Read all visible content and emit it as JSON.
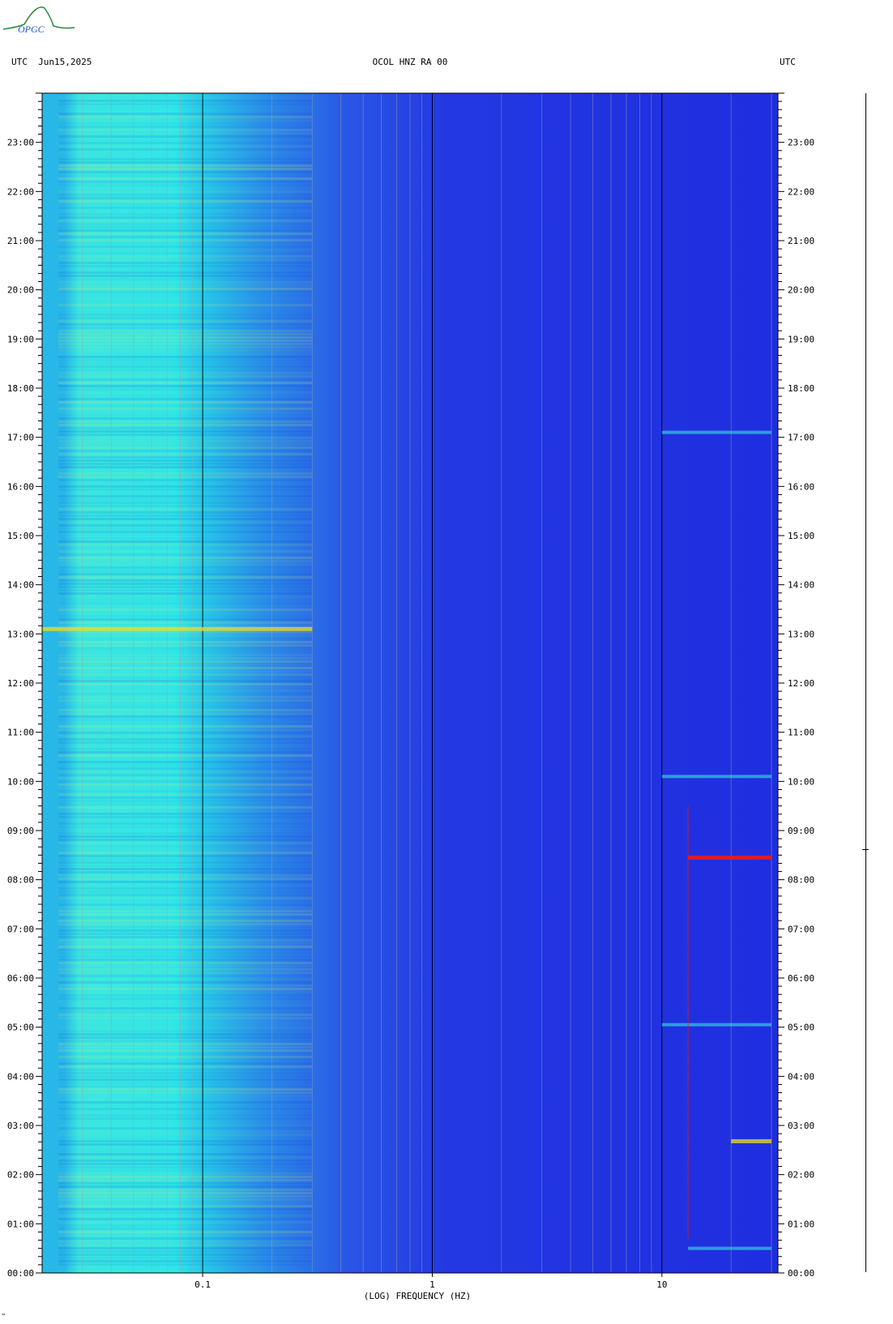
{
  "header": {
    "left": "UTC  Jun15,2025",
    "title": "OCOL HNZ RA 00",
    "right": "UTC",
    "logo_text": "OPGC"
  },
  "footer": {
    "mark": "\""
  },
  "chart_data": {
    "type": "heatmap",
    "title": "OCOL HNZ RA 00",
    "date": "Jun15,2025",
    "xlabel": "(LOG) FREQUENCY (HZ)",
    "ylabel": "UTC",
    "x_scale": "log",
    "xlim": [
      0.02,
      32
    ],
    "x_ticks": [
      0.1,
      1,
      10
    ],
    "x_tick_labels": [
      "0.1",
      "1",
      "10"
    ],
    "ylim_hours": [
      0,
      24
    ],
    "y_tick_labels": [
      "00:00",
      "01:00",
      "02:00",
      "03:00",
      "04:00",
      "05:00",
      "06:00",
      "07:00",
      "08:00",
      "09:00",
      "10:00",
      "11:00",
      "12:00",
      "13:00",
      "14:00",
      "15:00",
      "16:00",
      "17:00",
      "18:00",
      "19:00",
      "20:00",
      "21:00",
      "22:00",
      "23:00"
    ],
    "colors": {
      "background": "#1f2ee0",
      "low_band": "#1fd4e6",
      "mid_band": "#2b7fe8",
      "peak": "#e81a1a",
      "hot": "#f0e020"
    },
    "features": [
      {
        "hour": 8.45,
        "f_start": 13,
        "f_end": 30,
        "level": "max"
      },
      {
        "hour": 2.68,
        "f_start": 20,
        "f_end": 30,
        "level": "high"
      },
      {
        "hour": 13.1,
        "f_start": 0.02,
        "f_end": 0.3,
        "level": "high"
      },
      {
        "hour": 17.1,
        "f_start": 10,
        "f_end": 30,
        "level": "medium"
      },
      {
        "hour": 10.1,
        "f_start": 10,
        "f_end": 30,
        "level": "medium"
      },
      {
        "hour": 5.05,
        "f_start": 10,
        "f_end": 30,
        "level": "medium"
      },
      {
        "hour": 0.5,
        "f_start": 13,
        "f_end": 30,
        "level": "medium"
      }
    ]
  }
}
